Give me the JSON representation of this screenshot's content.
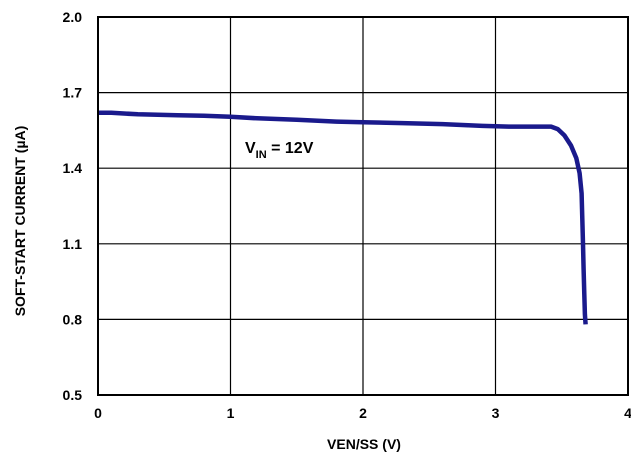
{
  "chart_data": {
    "type": "line",
    "title": "",
    "xlabel": "VEN/SS (V)",
    "ylabel": "SOFT-START CURRENT (µA)",
    "xlim": [
      0,
      4
    ],
    "ylim": [
      0.5,
      2.0
    ],
    "xticks": [
      0,
      1,
      2,
      3,
      4
    ],
    "xtick_labels": [
      "0",
      "1",
      "2",
      "3",
      "4"
    ],
    "yticks": [
      0.5,
      0.8,
      1.1,
      1.4,
      1.7,
      2.0
    ],
    "ytick_labels": [
      "0.5",
      "0.8",
      "1.1",
      "1.4",
      "1.7",
      "2.0"
    ],
    "grid": true,
    "legend": "none",
    "annotation": {
      "main": "V",
      "subscript": "IN",
      "suffix": " = 12V"
    },
    "series": [
      {
        "color": "#1a1a8c",
        "x": [
          0.0,
          0.1,
          0.3,
          0.6,
          0.8,
          1.0,
          1.2,
          1.5,
          1.8,
          2.0,
          2.3,
          2.6,
          2.9,
          3.1,
          3.3,
          3.42,
          3.47,
          3.52,
          3.57,
          3.61,
          3.635,
          3.65,
          3.655,
          3.66,
          3.665,
          3.67,
          3.675,
          3.68
        ],
        "y": [
          1.62,
          1.62,
          1.614,
          1.61,
          1.608,
          1.604,
          1.598,
          1.592,
          1.585,
          1.582,
          1.579,
          1.575,
          1.568,
          1.565,
          1.565,
          1.565,
          1.555,
          1.53,
          1.49,
          1.44,
          1.38,
          1.3,
          1.2,
          1.1,
          1.0,
          0.9,
          0.82,
          0.78
        ]
      }
    ]
  }
}
